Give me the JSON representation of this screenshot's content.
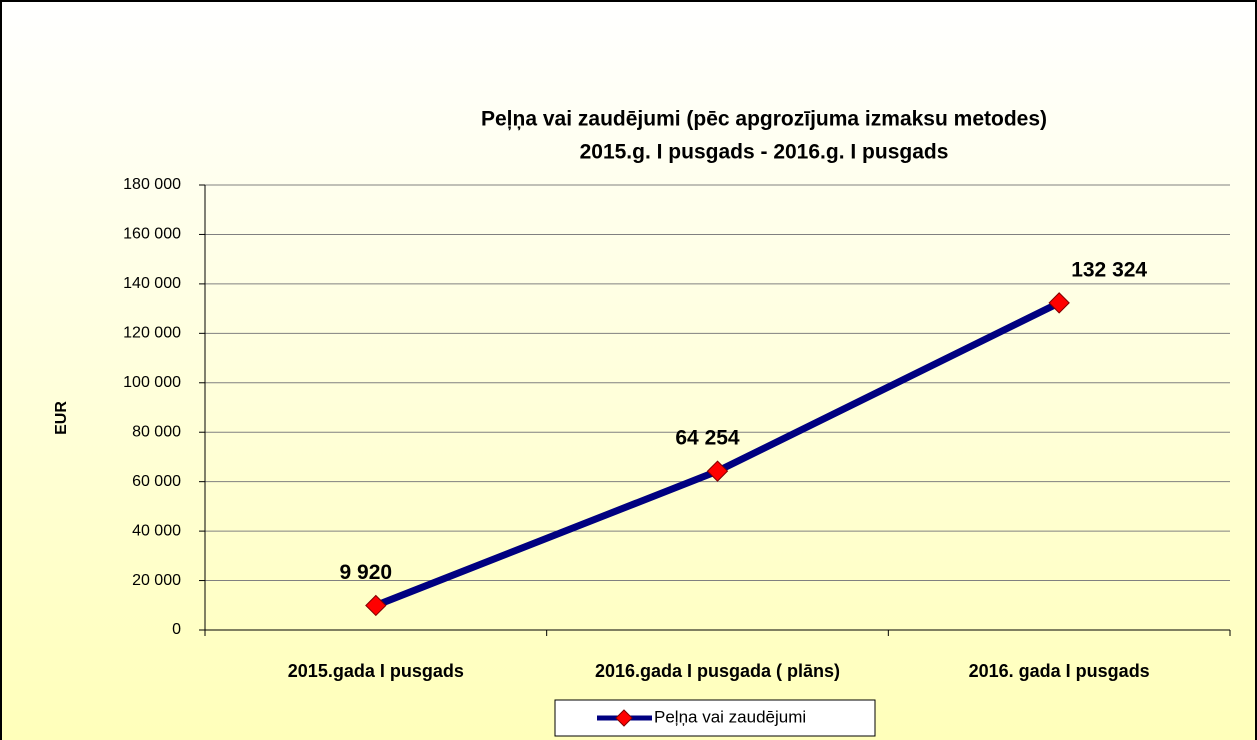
{
  "chart_data": {
    "type": "line",
    "title": "Peļņa vai zaudējumi (pēc apgrozījuma izmaksu metodes)",
    "subtitle": "2015.g. I pusgads - 2016.g. I pusgads",
    "y_label": "EUR",
    "categories": [
      "2015.gada I pusgads",
      "2016.gada I pusgada ( plāns)",
      "2016. gada I pusgads"
    ],
    "series": [
      {
        "name": "Peļņa vai zaudējumi",
        "color": "#000080",
        "marker_color": "#ff0000",
        "values": [
          9920,
          64254,
          132324
        ],
        "value_labels": [
          "9 920",
          "64 254",
          "132 324"
        ]
      }
    ],
    "ylim": [
      0,
      180000
    ],
    "yticks": [
      0,
      {
        "value": 20000,
        "label": "20 000"
      },
      {
        "value": 40000,
        "label": "40 000"
      },
      {
        "value": 60000,
        "label": "60 000"
      },
      {
        "value": 80000,
        "label": "80 000"
      },
      {
        "value": 100000,
        "label": "100 000"
      },
      {
        "value": 120000,
        "label": "120 000"
      },
      {
        "value": 140000,
        "label": "140 000"
      },
      {
        "value": 160000,
        "label": "160 000"
      },
      {
        "value": 180000,
        "label": "180 000"
      }
    ],
    "grid": true,
    "legend": "bottom"
  }
}
